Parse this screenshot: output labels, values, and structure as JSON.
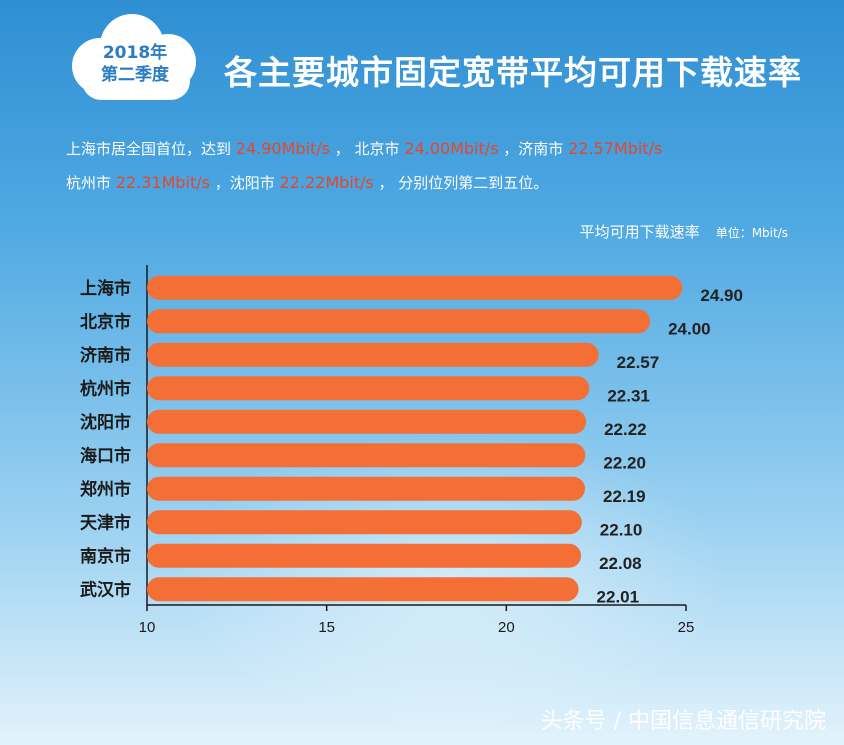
{
  "badge": {
    "line1": "2018年",
    "line2": "第二季度"
  },
  "title": "各主要城市固定宽带平均可用下载速率",
  "summary": {
    "line1": [
      {
        "text": "上海市居全国首位，达到 ",
        "hl": false
      },
      {
        "text": "24.90Mbit/s",
        "hl": true
      },
      {
        "text": " ，  北京市 ",
        "hl": false
      },
      {
        "text": "24.00Mbit/s",
        "hl": true
      },
      {
        "text": " ，济南市 ",
        "hl": false
      },
      {
        "text": "22.57Mbit/s",
        "hl": true
      }
    ],
    "line2": [
      {
        "text": "杭州市 ",
        "hl": false
      },
      {
        "text": "22.31Mbit/s",
        "hl": true
      },
      {
        "text": " ，沈阳市  ",
        "hl": false
      },
      {
        "text": "22.22Mbit/s",
        "hl": true
      },
      {
        "text": " ，   分别位列第二到五位。",
        "hl": false
      }
    ]
  },
  "unit_label": {
    "title": "平均可用下载速率",
    "unit": "单位：Mbit/s"
  },
  "footer": "头条号 / 中国信息通信研究院",
  "colors": {
    "bar": "#f36f36",
    "axis": "#1a1a1a",
    "city": "#1a1a1a",
    "value": "#222222"
  },
  "chart_data": {
    "type": "bar",
    "orientation": "horizontal",
    "categories": [
      "上海市",
      "北京市",
      "济南市",
      "杭州市",
      "沈阳市",
      "海口市",
      "郑州市",
      "天津市",
      "南京市",
      "武汉市"
    ],
    "values": [
      24.9,
      24.0,
      22.57,
      22.31,
      22.22,
      22.2,
      22.19,
      22.1,
      22.08,
      22.01
    ],
    "value_labels": [
      "24.90",
      "24.00",
      "22.57",
      "22.31",
      "22.22",
      "22.20",
      "22.19",
      "22.10",
      "22.08",
      "22.01"
    ],
    "x_ticks": [
      10,
      15,
      20,
      25
    ],
    "xlim": [
      10,
      25
    ],
    "title": "平均可用下载速率",
    "unit": "Mbit/s",
    "grid": false
  }
}
